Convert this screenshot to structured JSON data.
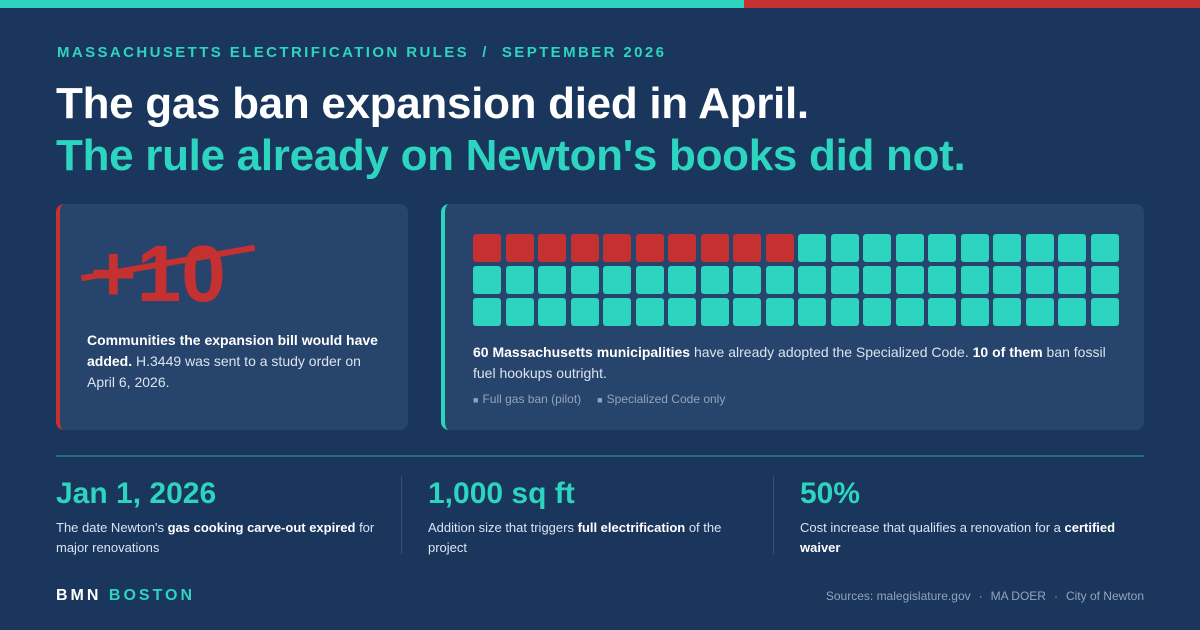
{
  "header": {
    "kicker": "MASSACHUSETTS ELECTRIFICATION RULES  /  SEPTEMBER 2026",
    "headline_line1": "The gas ban expansion died in April.",
    "headline_line2": "The rule already on Newton's books did not."
  },
  "left_card": {
    "big_number": "+10",
    "text_bold": "Communities the expansion bill would have added.",
    "text_rest": " H.3449 was sent to a study order on April 6, 2026."
  },
  "right_card": {
    "text_bold1": "60 Massachusetts municipalities",
    "text_mid": " have already adopted the Specialized Code. ",
    "text_bold2": "10 of them",
    "text_rest": " ban fossil fuel hookups outright.",
    "legend": [
      {
        "label": "Full gas ban (pilot)",
        "color": "#c53030"
      },
      {
        "label": "Specialized Code only",
        "color": "#2dd4bf"
      }
    ]
  },
  "chart_data": {
    "type": "waffle",
    "total": 60,
    "categories": [
      "Full gas ban (pilot)",
      "Specialized Code only"
    ],
    "values": [
      10,
      50
    ],
    "colors": [
      "#c53030",
      "#2dd4bf"
    ]
  },
  "stats": [
    {
      "value": "Jan 1, 2026",
      "desc_pre": "The date Newton's ",
      "desc_bold": "gas cooking carve-out expired",
      "desc_post": " for major renovations"
    },
    {
      "value": "1,000 sq ft",
      "desc_pre": "Addition size that triggers ",
      "desc_bold": "full electrification",
      "desc_post": " of the project"
    },
    {
      "value": "50%",
      "desc_pre": "Cost increase that qualifies a renovation for a ",
      "desc_bold": "certified waiver",
      "desc_post": ""
    }
  ],
  "footer": {
    "brand_part1": "BMN",
    "brand_part2": "BOSTON",
    "sources": [
      "Sources: malegislature.gov",
      "MA DOER",
      "City of Newton"
    ]
  },
  "colors": {
    "background": "#1a365d",
    "teal": "#2dd4bf",
    "red": "#c53030",
    "card": "#27446c"
  }
}
